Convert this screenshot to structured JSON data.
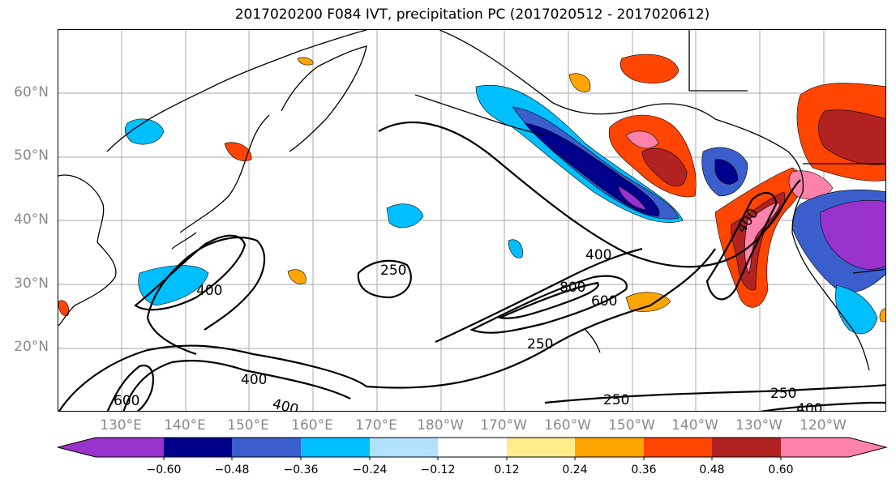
{
  "title": "2017020200 F084 IVT, precipitation PC (2017020512 - 2017020612)",
  "latitude_labels": [
    "60°N",
    "50°N",
    "40°N",
    "30°N",
    "20°N"
  ],
  "longitude_labels": [
    "130°E",
    "140°E",
    "150°E",
    "160°E",
    "170°E",
    "180°W",
    "170°W",
    "160°W",
    "150°W",
    "140°W",
    "130°W",
    "120°W"
  ],
  "colorbar": {
    "ticks": [
      "−0.60",
      "−0.48",
      "−0.36",
      "−0.24",
      "−0.12",
      "0.12",
      "0.24",
      "0.36",
      "0.48",
      "0.60"
    ],
    "colors": [
      "#9932cc",
      "#00008b",
      "#3a5fcd",
      "#00bfff",
      "#b0e2ff",
      "#ffffff",
      "#ffec8b",
      "#ffa500",
      "#ff4500",
      "#b22222",
      "#ff82ab"
    ]
  },
  "ivt_contour_labels": [
    "250",
    "400",
    "400",
    "600",
    "800",
    "250",
    "400",
    "600",
    "400",
    "400",
    "250",
    "250",
    "400"
  ],
  "colors": {
    "coastline": "#000000",
    "grid": "#999999",
    "axis_label": "#8a8a8a"
  }
}
